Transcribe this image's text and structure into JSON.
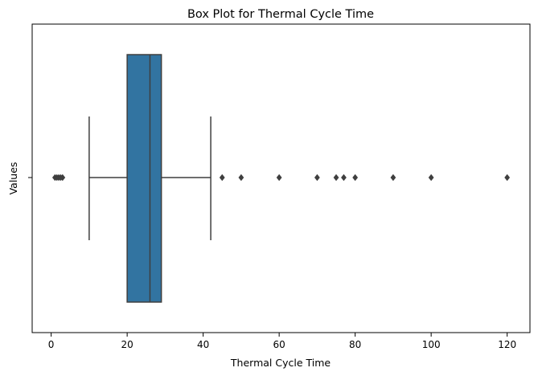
{
  "chart_data": {
    "type": "box",
    "title": "Box Plot for Thermal Cycle Time",
    "xlabel": "Thermal Cycle Time",
    "ylabel": "Values",
    "xlim": [
      -5,
      126
    ],
    "x_ticks": [
      0,
      20,
      40,
      60,
      80,
      100,
      120
    ],
    "y_tick_labels": [
      ""
    ],
    "grid": false,
    "colors": {
      "box_fill": "#3274a1",
      "lines": "#3f3f3f"
    },
    "box": {
      "whisker_low": 10,
      "q1": 20,
      "median": 26,
      "q3": 29,
      "whisker_high": 42
    },
    "outliers": [
      1,
      1.5,
      2,
      2.5,
      3,
      45,
      50,
      60,
      70,
      75,
      77,
      80,
      90,
      100,
      120
    ]
  }
}
